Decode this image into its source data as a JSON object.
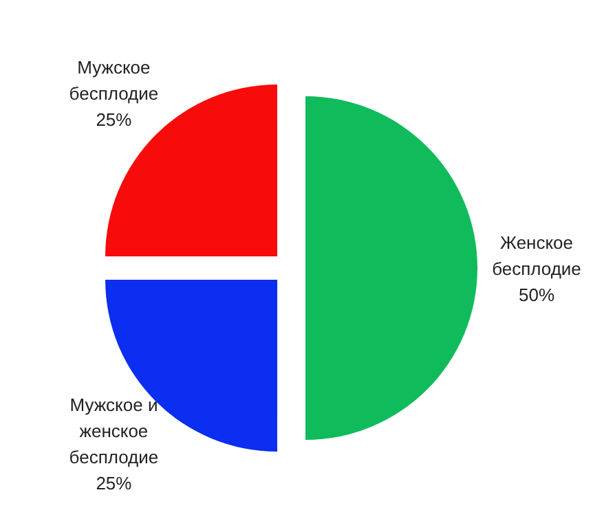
{
  "chart_data": {
    "type": "pie",
    "categories": [
      "Женское бесплодие",
      "Мужское и женское бесплодие",
      "Мужское бесплодие"
    ],
    "values": [
      50,
      25,
      25
    ],
    "value_labels": [
      "50%",
      "25%",
      "25%"
    ],
    "colors": [
      "#10bb5c",
      "#0b2ef0",
      "#f70b0b"
    ]
  }
}
